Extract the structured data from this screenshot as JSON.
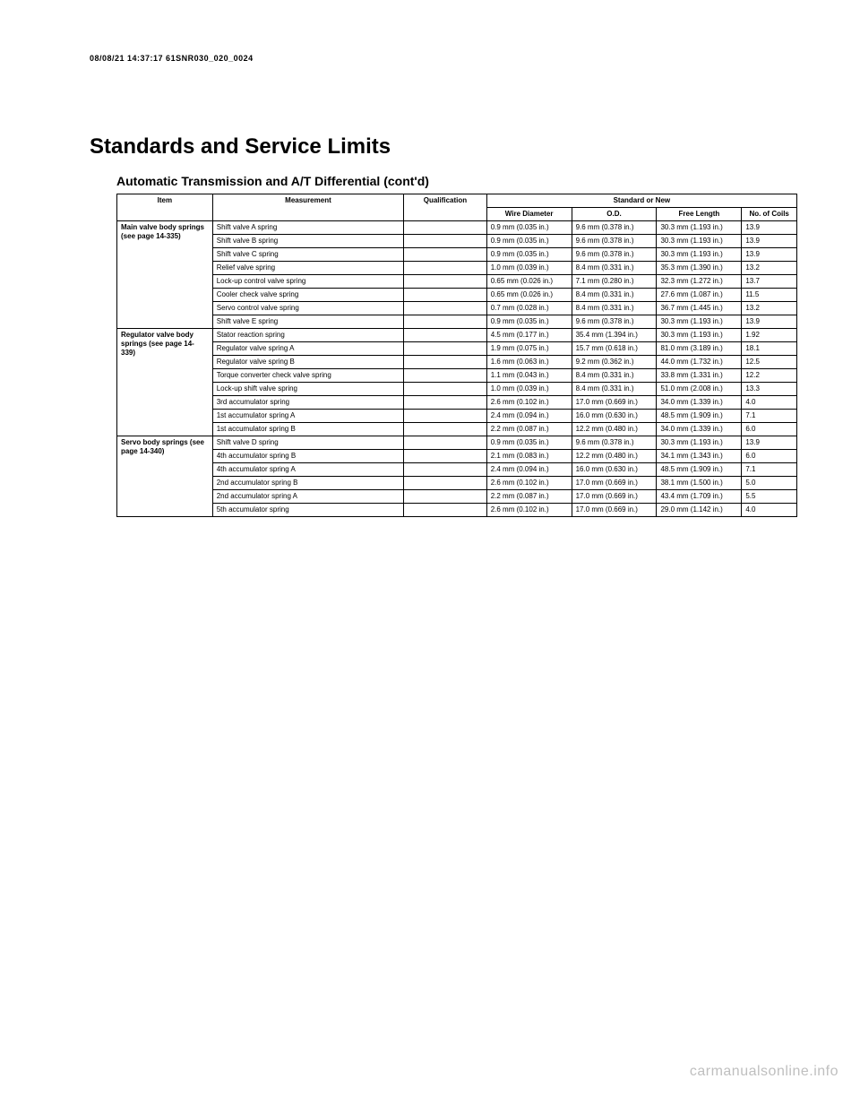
{
  "header_meta": "08/08/21 14:37:17 61SNR030_020_0024",
  "main_title": "Standards and Service Limits",
  "section_title": "Automatic Transmission and A/T Differential (cont'd)",
  "columns": {
    "item": "Item",
    "measurement": "Measurement",
    "qualification": "Qualification",
    "standard_new": "Standard or New",
    "wire_dia": "Wire Diameter",
    "od": "O.D.",
    "free_length": "Free Length",
    "coils": "No. of Coils"
  },
  "groups": [
    {
      "item": "Main valve body springs (see page 14-335)",
      "rows": [
        {
          "meas": "Shift valve A spring",
          "wire": "0.9 mm (0.035 in.)",
          "od": "9.6 mm (0.378 in.)",
          "free": "30.3 mm (1.193 in.)",
          "coils": "13.9"
        },
        {
          "meas": "Shift valve B spring",
          "wire": "0.9 mm (0.035 in.)",
          "od": "9.6 mm (0.378 in.)",
          "free": "30.3 mm (1.193 in.)",
          "coils": "13.9"
        },
        {
          "meas": "Shift valve C spring",
          "wire": "0.9 mm (0.035 in.)",
          "od": "9.6 mm (0.378 in.)",
          "free": "30.3 mm (1.193 in.)",
          "coils": "13.9"
        },
        {
          "meas": "Relief valve spring",
          "wire": "1.0 mm (0.039 in.)",
          "od": "8.4 mm (0.331 in.)",
          "free": "35.3 mm (1.390 in.)",
          "coils": "13.2"
        },
        {
          "meas": "Lock-up control valve spring",
          "wire": "0.65 mm (0.026 in.)",
          "od": "7.1 mm (0.280 in.)",
          "free": "32.3 mm (1.272 in.)",
          "coils": "13.7"
        },
        {
          "meas": "Cooler check valve spring",
          "wire": "0.65 mm (0.026 in.)",
          "od": "8.4 mm (0.331 in.)",
          "free": "27.6 mm (1.087 in.)",
          "coils": "11.5"
        },
        {
          "meas": "Servo control valve spring",
          "wire": "0.7 mm (0.028 in.)",
          "od": "8.4 mm (0.331 in.)",
          "free": "36.7 mm (1.445 in.)",
          "coils": "13.2"
        },
        {
          "meas": "Shift valve E spring",
          "wire": "0.9 mm (0.035 in.)",
          "od": "9.6 mm (0.378 in.)",
          "free": "30.3 mm (1.193 in.)",
          "coils": "13.9"
        }
      ]
    },
    {
      "item": "Regulator valve body springs (see page 14-339)",
      "rows": [
        {
          "meas": "Stator reaction spring",
          "wire": "4.5 mm (0.177 in.)",
          "od": "35.4 mm (1.394 in.)",
          "free": "30.3 mm (1.193 in.)",
          "coils": "1.92"
        },
        {
          "meas": "Regulator valve spring A",
          "wire": "1.9 mm (0.075 in.)",
          "od": "15.7 mm (0.618 in.)",
          "free": "81.0 mm (3.189 in.)",
          "coils": "18.1"
        },
        {
          "meas": "Regulator valve spring B",
          "wire": "1.6 mm (0.063 in.)",
          "od": "9.2 mm (0.362 in.)",
          "free": "44.0 mm (1.732 in.)",
          "coils": "12.5"
        },
        {
          "meas": "Torque converter check valve spring",
          "wire": "1.1 mm (0.043 in.)",
          "od": "8.4 mm (0.331 in.)",
          "free": "33.8 mm (1.331 in.)",
          "coils": "12.2"
        },
        {
          "meas": "Lock-up shift valve spring",
          "wire": "1.0 mm (0.039 in.)",
          "od": "8.4 mm (0.331 in.)",
          "free": "51.0 mm (2.008 in.)",
          "coils": "13.3"
        },
        {
          "meas": "3rd accumulator spring",
          "wire": "2.6 mm (0.102 in.)",
          "od": "17.0 mm (0.669 in.)",
          "free": "34.0 mm (1.339 in.)",
          "coils": "4.0"
        },
        {
          "meas": "1st accumulator spring A",
          "wire": "2.4 mm (0.094 in.)",
          "od": "16.0 mm (0.630 in.)",
          "free": "48.5 mm (1.909 in.)",
          "coils": "7.1"
        },
        {
          "meas": "1st accumulator spring B",
          "wire": "2.2 mm (0.087 in.)",
          "od": "12.2 mm (0.480 in.)",
          "free": "34.0 mm (1.339 in.)",
          "coils": "6.0"
        }
      ]
    },
    {
      "item": "Servo body springs (see page 14-340)",
      "rows": [
        {
          "meas": "Shift valve D spring",
          "wire": "0.9 mm (0.035 in.)",
          "od": "9.6 mm (0.378 in.)",
          "free": "30.3 mm (1.193 in.)",
          "coils": "13.9"
        },
        {
          "meas": "4th accumulator spring B",
          "wire": "2.1 mm (0.083 in.)",
          "od": "12.2 mm (0.480 in.)",
          "free": "34.1 mm (1.343 in.)",
          "coils": "6.0"
        },
        {
          "meas": "4th accumulator spring A",
          "wire": "2.4 mm (0.094 in.)",
          "od": "16.0 mm (0.630 in.)",
          "free": "48.5 mm (1.909 in.)",
          "coils": "7.1"
        },
        {
          "meas": "2nd accumulator spring B",
          "wire": "2.6 mm (0.102 in.)",
          "od": "17.0 mm (0.669 in.)",
          "free": "38.1 mm (1.500 in.)",
          "coils": "5.0"
        },
        {
          "meas": "2nd accumulator spring A",
          "wire": "2.2 mm (0.087 in.)",
          "od": "17.0 mm (0.669 in.)",
          "free": "43.4 mm (1.709 in.)",
          "coils": "5.5"
        },
        {
          "meas": "5th accumulator spring",
          "wire": "2.6 mm (0.102 in.)",
          "od": "17.0 mm (0.669 in.)",
          "free": "29.0 mm (1.142 in.)",
          "coils": "4.0"
        }
      ]
    }
  ],
  "watermark": "carmanualsonline.info"
}
